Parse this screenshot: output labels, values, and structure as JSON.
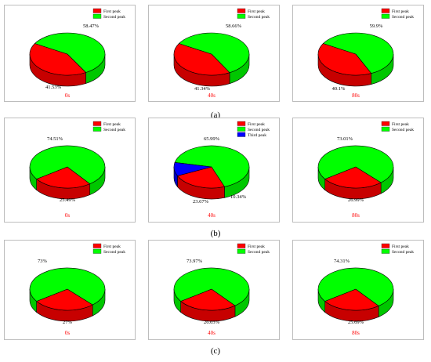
{
  "row_labels": [
    "(a)",
    "(b)",
    "(c)"
  ],
  "chart_data": [
    {
      "type": "pie",
      "time_label": "0s",
      "series": [
        {
          "name": "First peak",
          "value": 41.53
        },
        {
          "name": "Second peak",
          "value": 58.47
        }
      ],
      "labels": [
        "41.53%",
        "58.47%"
      ],
      "legend": "top-right",
      "colors": [
        "#ff0000",
        "#00ff00"
      ]
    },
    {
      "type": "pie",
      "time_label": "40s",
      "series": [
        {
          "name": "First peak",
          "value": 41.34
        },
        {
          "name": "Second peak",
          "value": 58.66
        }
      ],
      "labels": [
        "41.34%",
        "58.66%"
      ],
      "legend": "top-right",
      "colors": [
        "#ff0000",
        "#00ff00"
      ]
    },
    {
      "type": "pie",
      "time_label": "80s",
      "series": [
        {
          "name": "First peak",
          "value": 40.1
        },
        {
          "name": "Second peak",
          "value": 59.9
        }
      ],
      "labels": [
        "40.1%",
        "59.9%"
      ],
      "legend": "top-right",
      "colors": [
        "#ff0000",
        "#00ff00"
      ]
    },
    {
      "type": "pie",
      "time_label": "0s",
      "series": [
        {
          "name": "First peak",
          "value": 25.49
        },
        {
          "name": "Second peak",
          "value": 74.51
        }
      ],
      "labels": [
        "25.49%",
        "74.51%"
      ],
      "legend": "top-right",
      "colors": [
        "#ff0000",
        "#00ff00"
      ]
    },
    {
      "type": "pie",
      "time_label": "40s",
      "series": [
        {
          "name": "First peak",
          "value": 23.67
        },
        {
          "name": "Second peak",
          "value": 65.99
        },
        {
          "name": "Third peak",
          "value": 10.34
        }
      ],
      "labels": [
        "23.67%",
        "65.99%",
        "10.34%"
      ],
      "legend": "top-right",
      "colors": [
        "#ff0000",
        "#00ff00",
        "#0000ff"
      ]
    },
    {
      "type": "pie",
      "time_label": "80s",
      "series": [
        {
          "name": "First peak",
          "value": 26.99
        },
        {
          "name": "Second peak",
          "value": 73.01
        }
      ],
      "labels": [
        "26.99%",
        "73.01%"
      ],
      "legend": "top-right",
      "colors": [
        "#ff0000",
        "#00ff00"
      ]
    },
    {
      "type": "pie",
      "time_label": "0s",
      "series": [
        {
          "name": "First peak",
          "value": 27
        },
        {
          "name": "Second peak",
          "value": 73
        }
      ],
      "labels": [
        "27%",
        "73%"
      ],
      "legend": "top-right",
      "colors": [
        "#ff0000",
        "#00ff00"
      ]
    },
    {
      "type": "pie",
      "time_label": "40s",
      "series": [
        {
          "name": "First peak",
          "value": 26.03
        },
        {
          "name": "Second peak",
          "value": 73.97
        }
      ],
      "labels": [
        "26.03%",
        "73.97%"
      ],
      "legend": "top-right",
      "colors": [
        "#ff0000",
        "#00ff00"
      ]
    },
    {
      "type": "pie",
      "time_label": "80s",
      "series": [
        {
          "name": "First peak",
          "value": 25.69
        },
        {
          "name": "Second peak",
          "value": 74.31
        }
      ],
      "labels": [
        "25.69%",
        "74.31%"
      ],
      "legend": "top-right",
      "colors": [
        "#ff0000",
        "#00ff00"
      ]
    }
  ],
  "time_label_color": "#ff0000"
}
